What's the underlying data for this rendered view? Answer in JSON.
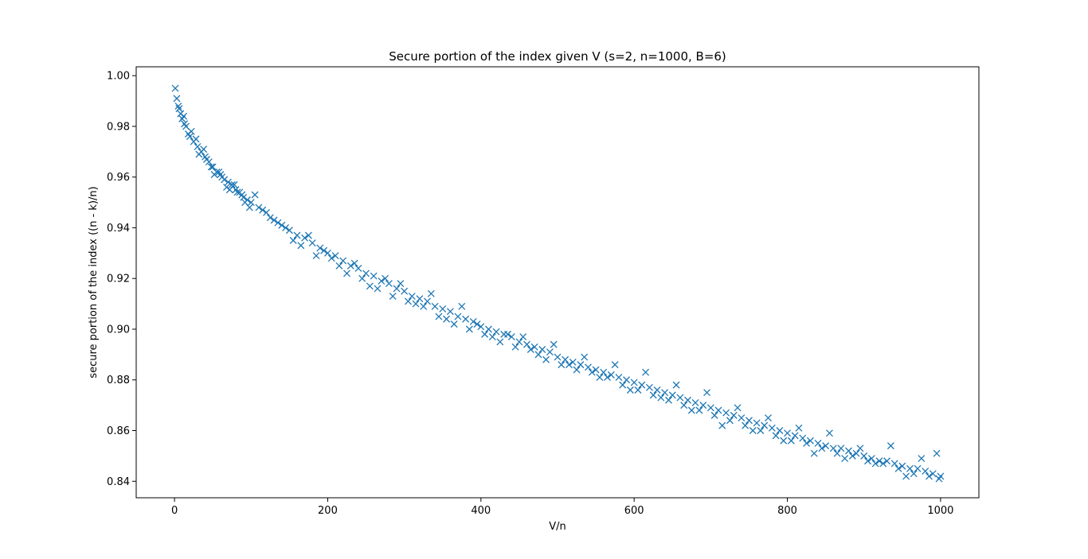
{
  "chart_data": {
    "type": "scatter",
    "title": "Secure portion of the index given V (s=2, n=1000, B=6)",
    "xlabel": "V/n",
    "ylabel": "secure portion of the index ((n - k)/n)",
    "xlim": [
      -50,
      1050
    ],
    "ylim": [
      0.8335,
      1.0035
    ],
    "xticks": [
      0,
      200,
      400,
      600,
      800,
      1000
    ],
    "xtick_labels": [
      "0",
      "200",
      "400",
      "600",
      "800",
      "1000"
    ],
    "yticks": [
      0.84,
      0.86,
      0.88,
      0.9,
      0.92,
      0.94,
      0.96,
      0.98,
      1.0
    ],
    "ytick_labels": [
      "0.84",
      "0.86",
      "0.88",
      "0.90",
      "0.92",
      "0.94",
      "0.96",
      "0.98",
      "1.00"
    ],
    "grid": false,
    "legend": "none",
    "marker": "x",
    "color": "#1f77b4",
    "series": [
      {
        "x": [
          1,
          3,
          5,
          8,
          10,
          13,
          15,
          20,
          25,
          30,
          35,
          40,
          45,
          50,
          55,
          60,
          65,
          70,
          75,
          80,
          85,
          90,
          95,
          100,
          110,
          120,
          130,
          140,
          150,
          160,
          170,
          180,
          190,
          200,
          210,
          220,
          230,
          240,
          250,
          260,
          270,
          280,
          290,
          300,
          310,
          320,
          330,
          340,
          350,
          360,
          370,
          380,
          390,
          400,
          410,
          420,
          430,
          440,
          450,
          460,
          470,
          480,
          490,
          500,
          510,
          520,
          530,
          540,
          550,
          560,
          570,
          580,
          590,
          600,
          610,
          620,
          630,
          640,
          650,
          660,
          670,
          680,
          690,
          700,
          710,
          720,
          730,
          740,
          750,
          760,
          770,
          780,
          790,
          800,
          810,
          820,
          830,
          840,
          850,
          860,
          870,
          880,
          890,
          900,
          910,
          920,
          930,
          940,
          950,
          960,
          970,
          980,
          990,
          1000
        ],
        "y": [
          0.995,
          0.991,
          0.988,
          0.985,
          0.983,
          0.981,
          0.98,
          0.976,
          0.974,
          0.972,
          0.97,
          0.968,
          0.966,
          0.964,
          0.962,
          0.961,
          0.959,
          0.958,
          0.957,
          0.955,
          0.954,
          0.952,
          0.951,
          0.95,
          0.948,
          0.946,
          0.943,
          0.941,
          0.939,
          0.937,
          0.936,
          0.934,
          0.932,
          0.93,
          0.929,
          0.927,
          0.925,
          0.924,
          0.922,
          0.921,
          0.919,
          0.918,
          0.916,
          0.915,
          0.913,
          0.912,
          0.911,
          0.909,
          0.908,
          0.907,
          0.905,
          0.904,
          0.903,
          0.901,
          0.9,
          0.899,
          0.898,
          0.897,
          0.895,
          0.894,
          0.893,
          0.892,
          0.891,
          0.889,
          0.888,
          0.887,
          0.886,
          0.885,
          0.884,
          0.883,
          0.882,
          0.881,
          0.88,
          0.879,
          0.878,
          0.877,
          0.876,
          0.875,
          0.874,
          0.873,
          0.872,
          0.871,
          0.87,
          0.869,
          0.868,
          0.867,
          0.866,
          0.865,
          0.864,
          0.863,
          0.862,
          0.861,
          0.86,
          0.859,
          0.858,
          0.857,
          0.856,
          0.855,
          0.854,
          0.853,
          0.853,
          0.852,
          0.851,
          0.85,
          0.849,
          0.848,
          0.848,
          0.847,
          0.846,
          0.845,
          0.845,
          0.844,
          0.843,
          0.842
        ]
      },
      {
        "x": [
          6,
          12,
          18,
          28,
          38,
          48,
          58,
          68,
          78,
          88,
          98,
          115,
          135,
          155,
          175,
          195,
          215,
          235,
          255,
          275,
          295,
          315,
          335,
          355,
          375,
          395,
          415,
          435,
          455,
          475,
          495,
          515,
          535,
          555,
          575,
          595,
          615,
          635,
          655,
          675,
          695,
          715,
          735,
          755,
          775,
          795,
          815,
          835,
          855,
          875,
          895,
          915,
          935,
          955,
          975,
          995
        ],
        "y": [
          0.987,
          0.984,
          0.977,
          0.975,
          0.971,
          0.964,
          0.962,
          0.956,
          0.957,
          0.953,
          0.948,
          0.947,
          0.942,
          0.935,
          0.937,
          0.931,
          0.925,
          0.926,
          0.917,
          0.92,
          0.918,
          0.91,
          0.914,
          0.904,
          0.909,
          0.902,
          0.897,
          0.898,
          0.897,
          0.89,
          0.894,
          0.886,
          0.889,
          0.881,
          0.886,
          0.876,
          0.883,
          0.873,
          0.878,
          0.868,
          0.875,
          0.862,
          0.869,
          0.86,
          0.865,
          0.856,
          0.861,
          0.851,
          0.859,
          0.849,
          0.853,
          0.847,
          0.854,
          0.842,
          0.849,
          0.851
        ]
      },
      {
        "x": [
          22,
          32,
          42,
          52,
          62,
          72,
          82,
          92,
          105,
          125,
          145,
          165,
          185,
          205,
          225,
          245,
          265,
          285,
          305,
          325,
          345,
          365,
          385,
          405,
          425,
          445,
          465,
          485,
          505,
          525,
          545,
          565,
          585,
          605,
          625,
          645,
          665,
          685,
          705,
          725,
          745,
          765,
          785,
          805,
          825,
          845,
          865,
          885,
          905,
          925,
          945,
          965,
          985,
          998
        ],
        "y": [
          0.978,
          0.969,
          0.967,
          0.961,
          0.96,
          0.955,
          0.954,
          0.95,
          0.953,
          0.944,
          0.94,
          0.933,
          0.929,
          0.928,
          0.922,
          0.92,
          0.916,
          0.913,
          0.911,
          0.909,
          0.905,
          0.902,
          0.9,
          0.898,
          0.895,
          0.893,
          0.892,
          0.888,
          0.886,
          0.884,
          0.883,
          0.881,
          0.878,
          0.876,
          0.874,
          0.872,
          0.87,
          0.868,
          0.866,
          0.864,
          0.862,
          0.86,
          0.858,
          0.856,
          0.855,
          0.853,
          0.851,
          0.85,
          0.848,
          0.847,
          0.845,
          0.843,
          0.842,
          0.841
        ]
      }
    ]
  }
}
